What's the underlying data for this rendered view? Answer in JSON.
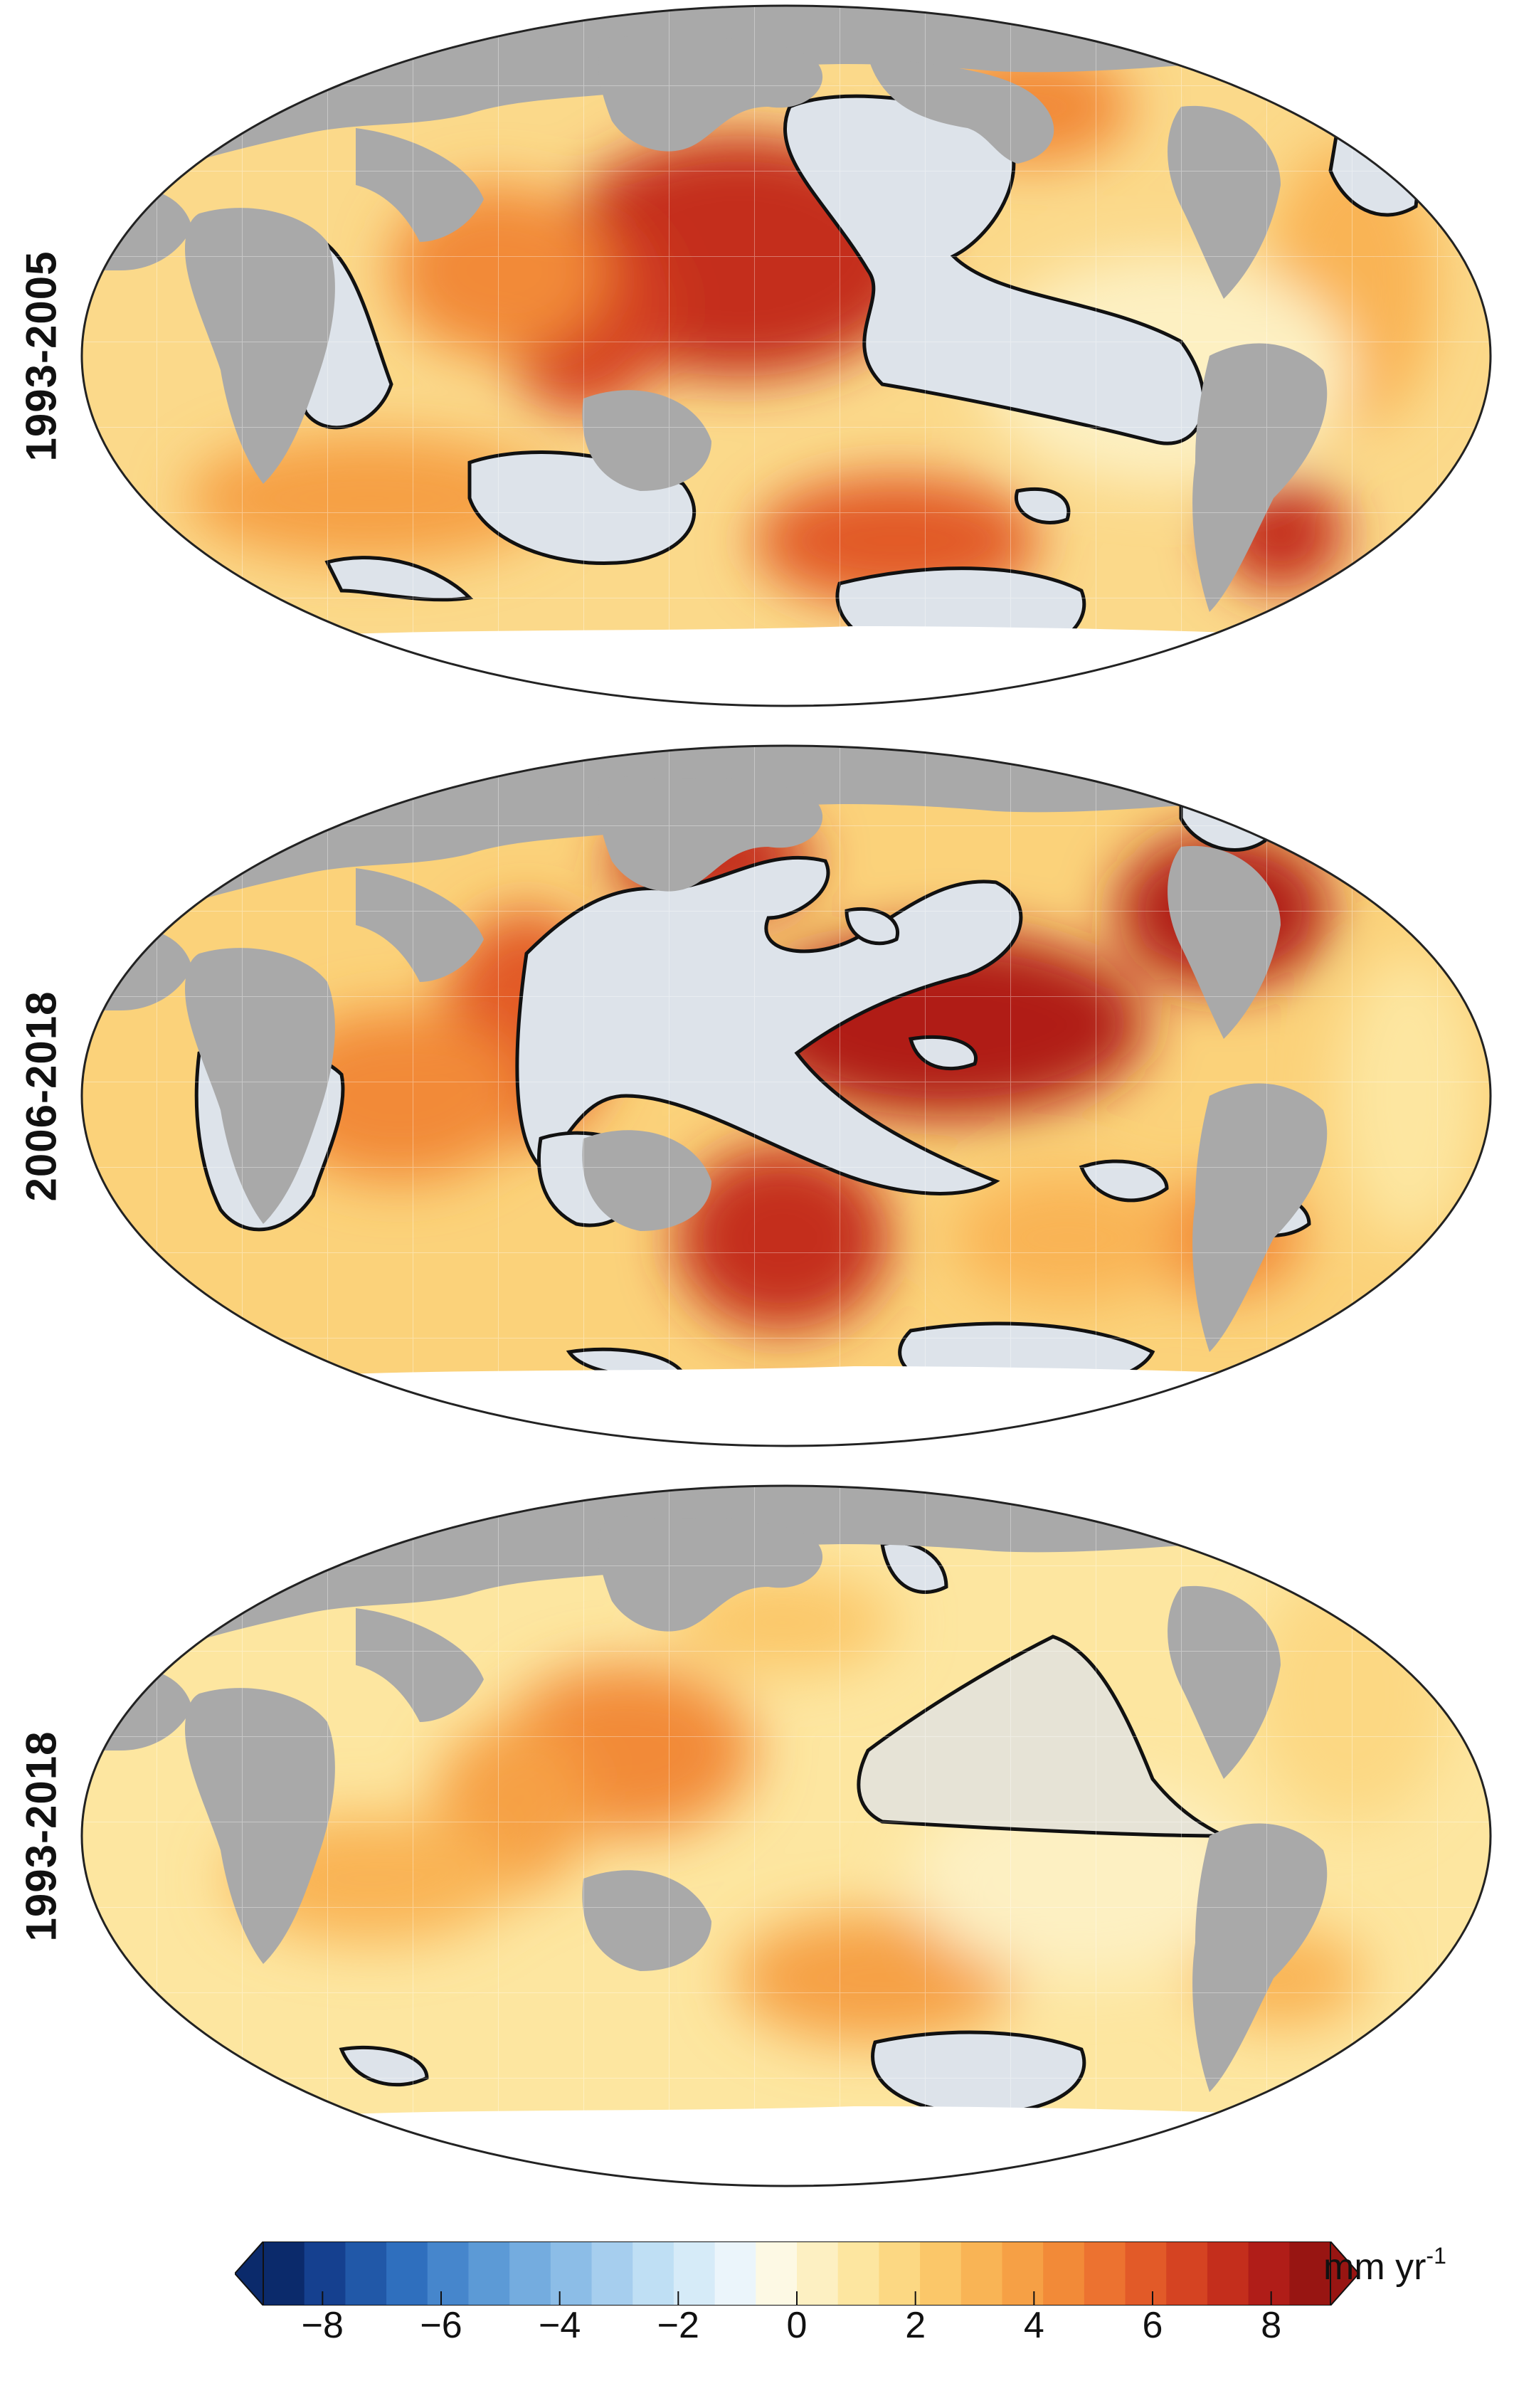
{
  "panels": [
    {
      "label": "1993-2005"
    },
    {
      "label": "2006-2018"
    },
    {
      "label": "1993-2018"
    }
  ],
  "colorbar": {
    "unit_main": "mm yr",
    "unit_sup": "-1",
    "ticks": [
      "−8",
      "−6",
      "−4",
      "−2",
      "0",
      "2",
      "4",
      "6",
      "8"
    ],
    "tick_values": [
      -8,
      -6,
      -4,
      -2,
      0,
      2,
      4,
      6,
      8
    ],
    "range": [
      -9,
      9
    ],
    "extend": "both",
    "colors_negative": [
      "#0b2a6b",
      "#15408f",
      "#2158a8",
      "#2f6fbe",
      "#4686cc",
      "#5c9ad6",
      "#74acdf",
      "#8cbde7",
      "#a6ceee",
      "#bfdff4",
      "#d6ebf8",
      "#ebf5fb"
    ],
    "colors_positive": [
      "#fdf9e4",
      "#fdf0c2",
      "#fde6a0",
      "#fcd883",
      "#fbc769",
      "#f9b455",
      "#f6a045",
      "#f28a38",
      "#ec7230",
      "#e25a28",
      "#d54322",
      "#c42e1c",
      "#b01d18",
      "#981512"
    ]
  },
  "colors": {
    "land": "#a9a9a9",
    "ice": "#ffffff",
    "insignificant_fill": "#dde3ea",
    "contour": "#111111"
  }
}
